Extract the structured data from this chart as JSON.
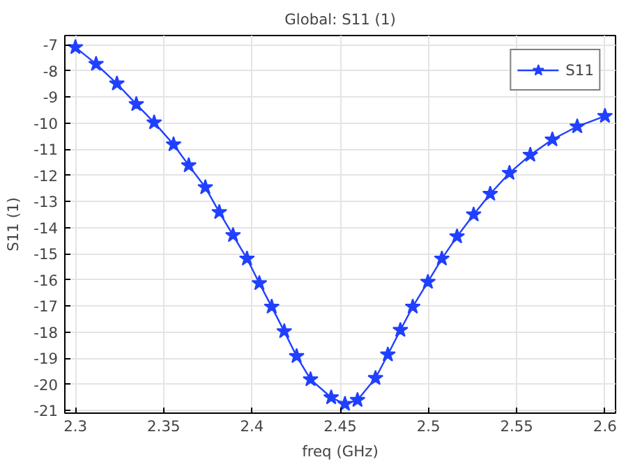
{
  "chart_data": {
    "type": "line",
    "title": "Global: S11 (1)",
    "xlabel": "freq (GHz)",
    "ylabel": "S11 (1)",
    "x": [
      2.3,
      2.3117,
      2.3235,
      2.3345,
      2.3446,
      2.3556,
      2.3642,
      2.3736,
      2.3815,
      2.3893,
      2.3972,
      2.4042,
      2.4112,
      2.4183,
      2.4253,
      2.4332,
      2.4449,
      2.4527,
      2.4598,
      2.47,
      2.477,
      2.4841,
      2.4911,
      2.4997,
      2.5076,
      2.5162,
      2.5256,
      2.535,
      2.5459,
      2.5577,
      2.5702,
      2.5843,
      2.6
    ],
    "series": [
      {
        "name": "S11",
        "color": "#2040ff",
        "values": [
          -7.1,
          -7.74,
          -8.49,
          -9.28,
          -9.98,
          -10.82,
          -11.62,
          -12.46,
          -13.41,
          -14.29,
          -15.19,
          -16.13,
          -17.03,
          -17.97,
          -18.92,
          -19.81,
          -20.5,
          -20.75,
          -20.6,
          -19.76,
          -18.86,
          -17.92,
          -17.03,
          -16.08,
          -15.19,
          -14.34,
          -13.5,
          -12.71,
          -11.91,
          -11.22,
          -10.63,
          -10.13,
          -9.73
        ]
      }
    ],
    "xlim": [
      2.294,
      2.606
    ],
    "ylim": [
      -21.1,
      -6.65
    ],
    "xticks": [
      2.3,
      2.35,
      2.4,
      2.45,
      2.5,
      2.55,
      2.6
    ],
    "yticks": [
      -21,
      -20,
      -19,
      -18,
      -17,
      -16,
      -15,
      -14,
      -13,
      -12,
      -11,
      -10,
      -9,
      -8,
      -7
    ],
    "grid": true,
    "legend": "top right",
    "marker": "star",
    "line_style": "solid"
  }
}
